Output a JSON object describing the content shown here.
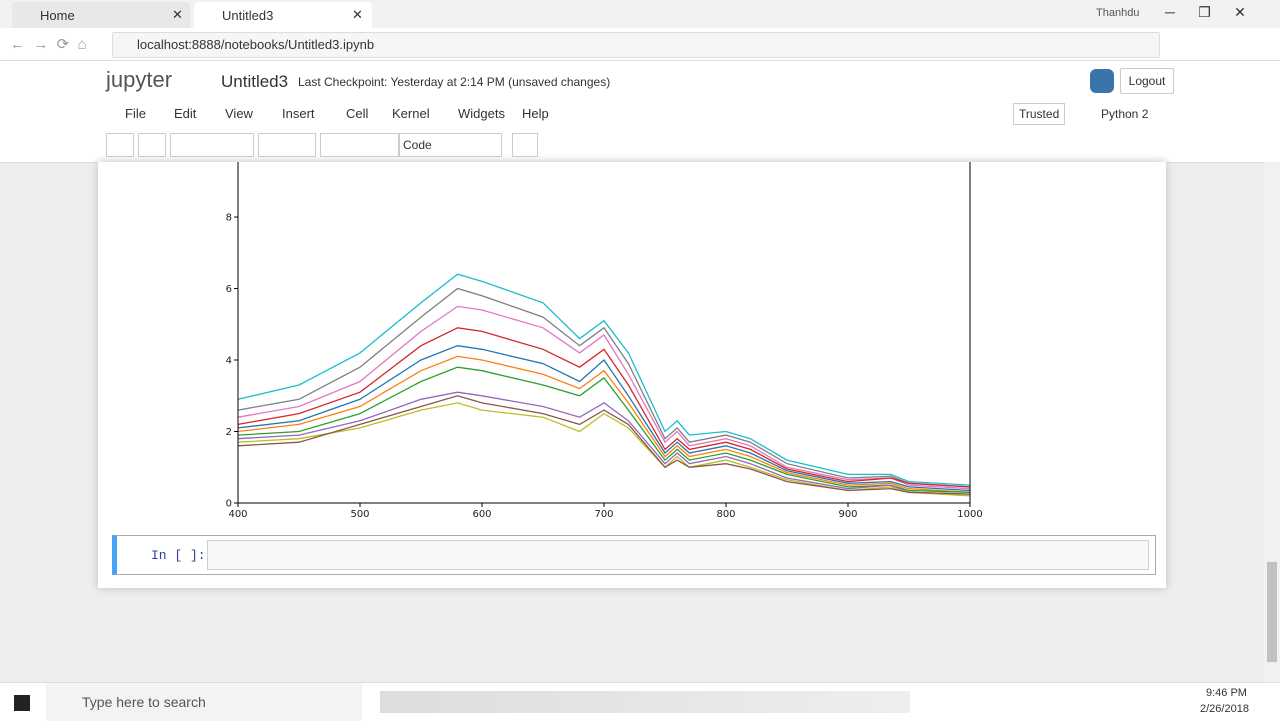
{
  "browser": {
    "tabs": [
      "Home",
      "Untitled3"
    ],
    "url": "localhost:8888/notebooks/Untitled3.ipynb",
    "user": "Thanhdu"
  },
  "jupyter": {
    "logo": "jupyter",
    "notebook_name": "Untitled3",
    "checkpoint": "Last Checkpoint: Yesterday at 2:14 PM (unsaved changes)",
    "logout": "Logout",
    "menu": [
      "File",
      "Edit",
      "View",
      "Insert",
      "Cell",
      "Kernel",
      "Widgets",
      "Help"
    ],
    "trusted": "Trusted",
    "kernel": "Python 2",
    "cell_type": "Code",
    "prompt": "In [ ]:"
  },
  "chart_data": {
    "type": "line",
    "x": [
      400,
      450,
      500,
      550,
      580,
      600,
      650,
      680,
      700,
      720,
      750,
      760,
      770,
      800,
      820,
      850,
      900,
      935,
      950,
      1000
    ],
    "xlim": [
      400,
      1000
    ],
    "xticks": [
      400,
      500,
      600,
      700,
      800,
      900,
      1000
    ],
    "ylim": [
      0,
      9.5
    ],
    "yticks": [
      0,
      2,
      4,
      6,
      8
    ],
    "series": [
      {
        "color": "#17becf",
        "values": [
          2.9,
          3.3,
          4.2,
          5.6,
          6.4,
          6.2,
          5.6,
          4.6,
          5.1,
          4.2,
          2.0,
          2.3,
          1.9,
          2.0,
          1.8,
          1.2,
          0.8,
          0.8,
          0.6,
          0.5
        ]
      },
      {
        "color": "#7f7f7f",
        "values": [
          2.6,
          2.9,
          3.8,
          5.2,
          6.0,
          5.8,
          5.2,
          4.4,
          4.9,
          3.9,
          1.8,
          2.1,
          1.7,
          1.9,
          1.7,
          1.1,
          0.7,
          0.75,
          0.55,
          0.45
        ]
      },
      {
        "color": "#e377c2",
        "values": [
          2.4,
          2.7,
          3.4,
          4.8,
          5.5,
          5.4,
          4.9,
          4.2,
          4.7,
          3.6,
          1.7,
          2.0,
          1.6,
          1.8,
          1.6,
          1.0,
          0.65,
          0.7,
          0.5,
          0.4
        ]
      },
      {
        "color": "#d62728",
        "values": [
          2.2,
          2.5,
          3.1,
          4.4,
          4.9,
          4.8,
          4.3,
          3.8,
          4.3,
          3.3,
          1.5,
          1.8,
          1.5,
          1.7,
          1.5,
          0.95,
          0.6,
          0.7,
          0.55,
          0.45
        ]
      },
      {
        "color": "#1f77b4",
        "values": [
          2.1,
          2.3,
          2.9,
          4.0,
          4.4,
          4.3,
          3.9,
          3.4,
          4.0,
          3.0,
          1.4,
          1.7,
          1.4,
          1.6,
          1.4,
          0.9,
          0.55,
          0.6,
          0.45,
          0.35
        ]
      },
      {
        "color": "#ff7f0e",
        "values": [
          2.0,
          2.2,
          2.7,
          3.7,
          4.1,
          4.0,
          3.6,
          3.2,
          3.7,
          2.8,
          1.3,
          1.6,
          1.3,
          1.5,
          1.3,
          0.85,
          0.5,
          0.55,
          0.4,
          0.3
        ]
      },
      {
        "color": "#2ca02c",
        "values": [
          1.9,
          2.0,
          2.5,
          3.4,
          3.8,
          3.7,
          3.3,
          3.0,
          3.5,
          2.6,
          1.2,
          1.5,
          1.2,
          1.4,
          1.2,
          0.8,
          0.45,
          0.5,
          0.35,
          0.3
        ]
      },
      {
        "color": "#9467bd",
        "values": [
          1.8,
          1.9,
          2.3,
          2.9,
          3.1,
          3.0,
          2.7,
          2.4,
          2.8,
          2.3,
          1.1,
          1.4,
          1.1,
          1.3,
          1.1,
          0.7,
          0.4,
          0.5,
          0.3,
          0.25
        ]
      },
      {
        "color": "#bcbd22",
        "values": [
          1.7,
          1.8,
          2.1,
          2.6,
          2.8,
          2.6,
          2.4,
          2.0,
          2.5,
          2.1,
          1.0,
          1.3,
          1.0,
          1.2,
          1.0,
          0.65,
          0.35,
          0.45,
          0.3,
          0.2
        ]
      },
      {
        "color": "#8c564b",
        "values": [
          1.6,
          1.7,
          2.2,
          2.7,
          3.0,
          2.8,
          2.5,
          2.2,
          2.6,
          2.2,
          1.0,
          1.2,
          1.0,
          1.1,
          0.95,
          0.6,
          0.35,
          0.4,
          0.3,
          0.25
        ]
      }
    ]
  },
  "taskbar": {
    "search": "Type here to search",
    "time": "9:46 PM",
    "date": "2/26/2018"
  }
}
